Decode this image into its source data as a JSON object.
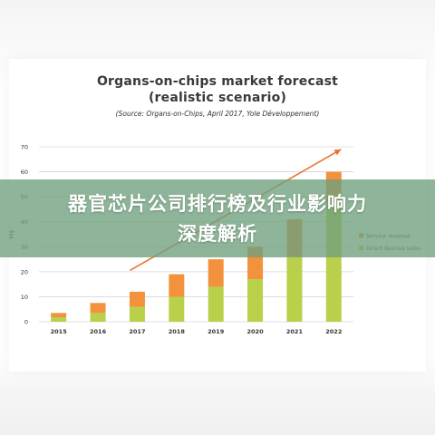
{
  "chart_data": {
    "type": "bar",
    "stacked": true,
    "title": "Organs-on-chips market forecast",
    "subtitle": "(realistic scenario)",
    "source": "(Source: Organs-on-Chips, April 2017, Yole Développement)",
    "ylabel": "M$",
    "ylim": [
      0,
      70
    ],
    "yticks": [
      0,
      10,
      20,
      30,
      40,
      50,
      60,
      70
    ],
    "grid": true,
    "categories": [
      "2015",
      "2016",
      "2017",
      "2018",
      "2019",
      "2020",
      "2021",
      "2022"
    ],
    "series": [
      {
        "name": "Direct devices sales",
        "color": "#b9d04a",
        "values": [
          1.8,
          3.5,
          6,
          10,
          14,
          17,
          26,
          48
        ]
      },
      {
        "name": "Service revenue",
        "color": "#f2923c",
        "values": [
          1.7,
          4,
          6,
          9,
          11,
          13,
          15,
          12
        ]
      }
    ],
    "trend_arrow": {
      "color": "#e8742f",
      "from": {
        "x": "2017",
        "y": 20.5
      },
      "to": {
        "x": "2022",
        "y": 69
      }
    },
    "legend_position": "right"
  },
  "banner": {
    "line1": "器官芯片公司排行榜及行业影响力",
    "line2": "深度解析"
  }
}
